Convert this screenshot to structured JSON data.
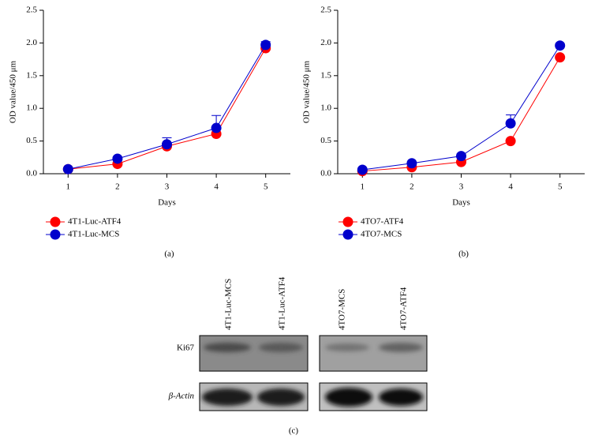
{
  "chart_data": [
    {
      "type": "line",
      "panel_label": "(a)",
      "x_label": "Days",
      "y_label": "OD value/450 μm",
      "x": [
        1,
        2,
        3,
        4,
        5
      ],
      "xlim": [
        0.5,
        5.5
      ],
      "xticks": [
        1,
        2,
        3,
        4,
        5
      ],
      "ylim": [
        0,
        2.5
      ],
      "yticks": [
        {
          "value": 0,
          "label": "0.0"
        },
        0.5,
        {
          "value": 1,
          "label": "1.0"
        },
        1.5,
        {
          "value": 2,
          "label": "2.0"
        },
        2.5
      ],
      "series": [
        {
          "name": "4T1-Luc-ATF4",
          "color": "#ff0000",
          "values": [
            0.07,
            0.15,
            0.42,
            0.61,
            1.92
          ]
        },
        {
          "name": "4T1-Luc-MCS",
          "color": "#0000cc",
          "values": [
            0.07,
            0.23,
            0.45,
            0.7,
            1.97
          ],
          "errors": [
            0.01,
            0.02,
            0.1,
            0.19,
            0.05
          ]
        }
      ]
    },
    {
      "type": "line",
      "panel_label": "(b)",
      "x_label": "Days",
      "y_label": "OD value/450 μm",
      "x": [
        1,
        2,
        3,
        4,
        5
      ],
      "xlim": [
        0.5,
        5.5
      ],
      "xticks": [
        1,
        2,
        3,
        4,
        5
      ],
      "ylim": [
        0,
        2.5
      ],
      "yticks": [
        {
          "value": 0,
          "label": "0.0"
        },
        0.5,
        {
          "value": 1,
          "label": "1.0"
        },
        1.5,
        {
          "value": 2,
          "label": "2.0"
        },
        2.5
      ],
      "series": [
        {
          "name": "4TO7-ATF4",
          "color": "#ff0000",
          "values": [
            0.04,
            0.1,
            0.18,
            0.5,
            1.78
          ]
        },
        {
          "name": "4TO7-MCS",
          "color": "#0000cc",
          "values": [
            0.06,
            0.16,
            0.27,
            0.77,
            1.96
          ],
          "errors": [
            0.01,
            0.02,
            0.03,
            0.13,
            0.03
          ]
        }
      ]
    }
  ],
  "blot": {
    "panel_label": "(c)",
    "lanes": [
      "4T1-Luc-MCS",
      "4T1-Luc-ATF4",
      "4TO7-MCS",
      "4TO7-ATF4"
    ],
    "rows": [
      "Ki67",
      "β-Actin"
    ]
  }
}
